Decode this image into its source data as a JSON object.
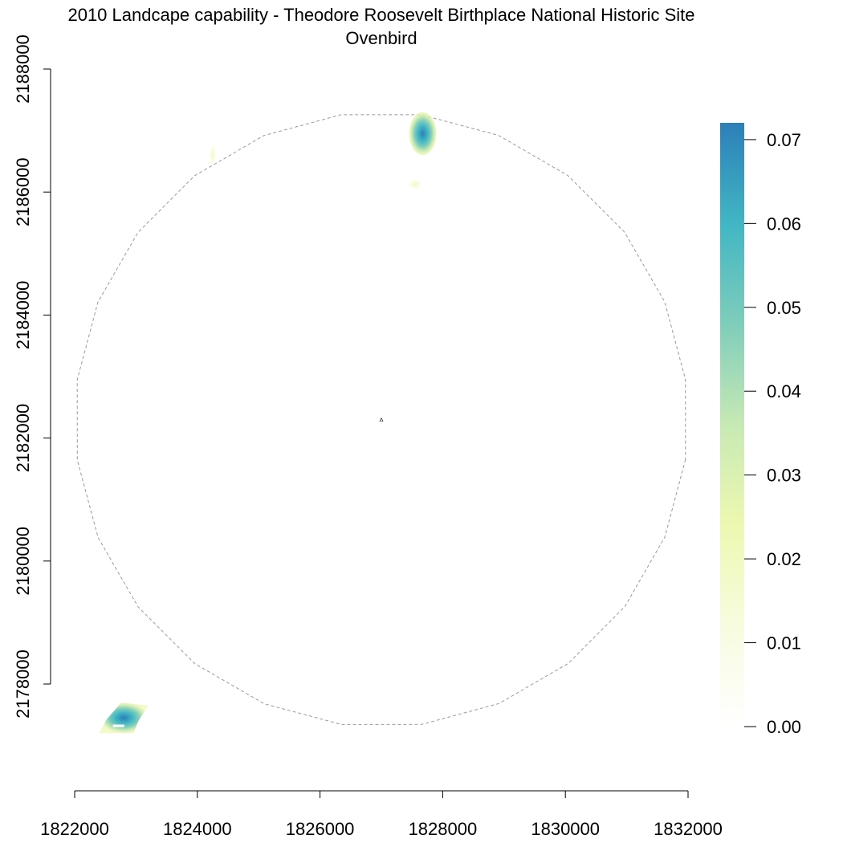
{
  "chart_data": {
    "type": "heatmap",
    "title": "2010 Landcape capability - Theodore Roosevelt Birthplace National Historic Site",
    "subtitle": "Ovenbird",
    "xlabel": "",
    "ylabel": "",
    "xlim": [
      1822000,
      1832000
    ],
    "ylim": [
      2177200,
      2188000
    ],
    "x_ticks": [
      1822000,
      1824000,
      1826000,
      1828000,
      1830000,
      1832000
    ],
    "x_tick_labels": [
      "1822000",
      "1824000",
      "1826000",
      "1828000",
      "1830000",
      "1832000"
    ],
    "y_ticks": [
      2178000,
      2180000,
      2182000,
      2184000,
      2186000,
      2188000
    ],
    "y_tick_labels": [
      "2178000",
      "2180000",
      "2182000",
      "2184000",
      "2186000",
      "2188000"
    ],
    "grid": false,
    "boundary": {
      "style": "dashed circle",
      "center": [
        1827000,
        2182300
      ],
      "radius": 5000
    },
    "site_marker": [
      1827000,
      2182300
    ],
    "legend": {
      "placement": "right",
      "range": [
        0,
        0.072
      ],
      "ticks": [
        0.0,
        0.01,
        0.02,
        0.03,
        0.04,
        0.05,
        0.06,
        0.07
      ],
      "tick_labels": [
        "0.00",
        "0.01",
        "0.02",
        "0.03",
        "0.04",
        "0.05",
        "0.06",
        "0.07"
      ],
      "colors": [
        "#ffffff",
        "#f7fcdf",
        "#edf8b1",
        "#c7e9b4",
        "#7fcdbb",
        "#41b6c4",
        "#2c7fb8"
      ]
    },
    "patches": [
      {
        "region": "north",
        "x_range": [
          1827450,
          1827900
        ],
        "y_range": [
          2186600,
          2187300
        ],
        "peak_value": 0.07
      },
      {
        "region": "north-fringe",
        "x_range": [
          1827450,
          1827650
        ],
        "y_range": [
          2186050,
          2186200
        ],
        "peak_value": 0.005
      },
      {
        "region": "northwest-faint",
        "x_range": [
          1824200,
          1824300
        ],
        "y_range": [
          2186450,
          2186750
        ],
        "peak_value": 0.002
      },
      {
        "region": "southwest",
        "x_range": [
          1822400,
          1823200
        ],
        "y_range": [
          2177200,
          2177700
        ],
        "peak_value": 0.065
      }
    ]
  }
}
